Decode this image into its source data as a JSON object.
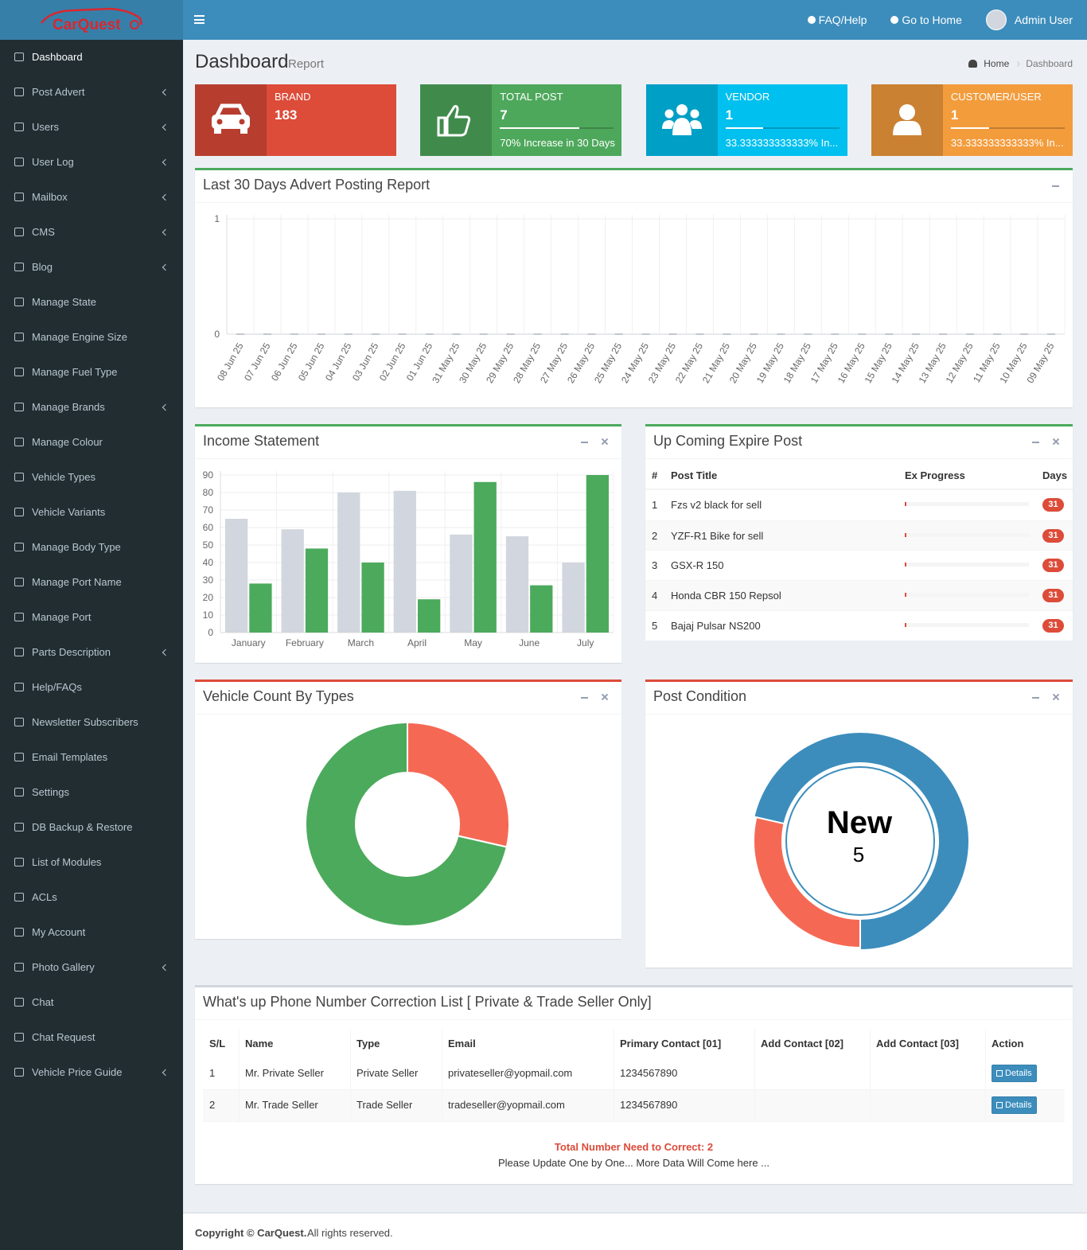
{
  "logo": "CarQuest",
  "topbar": {
    "links": [
      "FAQ/Help",
      "Go to Home"
    ],
    "user": "Admin User"
  },
  "sidebar": [
    {
      "label": "Dashboard",
      "submenu": false
    },
    {
      "label": "Post Advert",
      "submenu": true
    },
    {
      "label": "Users",
      "submenu": true
    },
    {
      "label": "User Log",
      "submenu": true
    },
    {
      "label": "Mailbox",
      "submenu": true
    },
    {
      "label": "CMS",
      "submenu": true
    },
    {
      "label": "Blog",
      "submenu": true
    },
    {
      "label": "Manage State",
      "submenu": false
    },
    {
      "label": "Manage Engine Size",
      "submenu": false
    },
    {
      "label": "Manage Fuel Type",
      "submenu": false
    },
    {
      "label": "Manage Brands",
      "submenu": true
    },
    {
      "label": "Manage Colour",
      "submenu": false
    },
    {
      "label": "Vehicle Types",
      "submenu": false
    },
    {
      "label": "Vehicle Variants",
      "submenu": false
    },
    {
      "label": "Manage Body Type",
      "submenu": false
    },
    {
      "label": "Manage Port Name",
      "submenu": false
    },
    {
      "label": "Manage Port",
      "submenu": false
    },
    {
      "label": "Parts Description",
      "submenu": true
    },
    {
      "label": "Help/FAQs",
      "submenu": false
    },
    {
      "label": "Newsletter Subscribers",
      "submenu": false
    },
    {
      "label": "Email Templates",
      "submenu": false
    },
    {
      "label": "Settings",
      "submenu": false
    },
    {
      "label": "DB Backup & Restore",
      "submenu": false
    },
    {
      "label": "List of Modules",
      "submenu": false
    },
    {
      "label": "ACLs",
      "submenu": false
    },
    {
      "label": "My Account",
      "submenu": false
    },
    {
      "label": "Photo Gallery",
      "submenu": true
    },
    {
      "label": "Chat",
      "submenu": false
    },
    {
      "label": "Chat Request",
      "submenu": false
    },
    {
      "label": "Vehicle Price Guide",
      "submenu": true
    }
  ],
  "header": {
    "title": "Dashboard",
    "subtitle": "Report",
    "breadcrumb": [
      "Home",
      "Dashboard"
    ]
  },
  "info_boxes": [
    {
      "label": "BRAND",
      "value": 183,
      "color": "#dd4b39"
    },
    {
      "label": "TOTAL POST",
      "value": 7,
      "progress": 70,
      "description": "70% Increase in 30 Days",
      "color": "#4ea85c"
    },
    {
      "label": "VENDOR",
      "value": 1,
      "progress": 33.333333333333,
      "description": "33.333333333333% In...",
      "color": "#00c0ef"
    },
    {
      "label": "CUSTOMER/USER",
      "value": 1,
      "progress": 33.333333333333,
      "description": "33.333333333333% In...",
      "color": "#f39c3c"
    }
  ],
  "charts": {
    "posting": {
      "type": "line",
      "title": "Last 30 Days Advert Posting Report",
      "categories": [
        "08 Jun 25",
        "07 Jun 25",
        "06 Jun 25",
        "05 Jun 25",
        "04 Jun 25",
        "03 Jun 25",
        "02 Jun 25",
        "01 Jun 25",
        "31 May 25",
        "30 May 25",
        "29 May 25",
        "28 May 25",
        "27 May 25",
        "26 May 25",
        "25 May 25",
        "24 May 25",
        "23 May 25",
        "22 May 25",
        "21 May 25",
        "20 May 25",
        "19 May 25",
        "18 May 25",
        "17 May 25",
        "16 May 25",
        "15 May 25",
        "14 May 25",
        "13 May 25",
        "12 May 25",
        "11 May 25",
        "10 May 25",
        "09 May 25"
      ],
      "values": [
        0,
        0,
        0,
        0,
        0,
        0,
        0,
        0,
        0,
        0,
        0,
        0,
        0,
        0,
        0,
        0,
        0,
        0,
        0,
        0,
        0,
        0,
        0,
        0,
        0,
        0,
        0,
        0,
        0,
        0,
        0
      ],
      "color": "#c1c7d1",
      "ylim": [
        0,
        1
      ],
      "yticks": [
        0,
        1
      ],
      "grid": true
    },
    "income": {
      "type": "bar",
      "title": "Income Statement",
      "categories": [
        "January",
        "February",
        "March",
        "April",
        "May",
        "June",
        "July"
      ],
      "series": [
        {
          "color": "#d2d6de",
          "values": [
            65,
            59,
            80,
            81,
            56,
            55,
            40
          ]
        },
        {
          "color": "#4caa5c",
          "values": [
            28,
            48,
            40,
            19,
            86,
            27,
            90
          ]
        }
      ],
      "ylim": [
        0,
        90
      ],
      "yticks": [
        0,
        10,
        20,
        30,
        40,
        50,
        60,
        70,
        80,
        90
      ],
      "grid": true
    },
    "vehicle_types": {
      "type": "donut",
      "title": "Vehicle Count By Types",
      "values": [
        2,
        5
      ],
      "colors": [
        "#f56954",
        "#4caa5c"
      ]
    },
    "post_condition": {
      "type": "donut",
      "title": "Post Condition",
      "categories": [
        "New",
        null,
        null
      ],
      "values": [
        5,
        2,
        0
      ],
      "colors": [
        "#3c8dbc",
        "#f56954",
        "#00a65a"
      ]
    }
  },
  "expire": {
    "title": "Up Coming Expire Post",
    "columns": [
      "#",
      "Post Title",
      "Ex Progress",
      "Days"
    ],
    "rows": [
      {
        "n": 1,
        "title": "Fzs v2 black for sell",
        "progress": 1,
        "days": 31
      },
      {
        "n": 2,
        "title": "YZF-R1 Bike for sell",
        "progress": 1,
        "days": 31
      },
      {
        "n": 3,
        "title": "GSX-R 150",
        "progress": 1,
        "days": 31
      },
      {
        "n": 4,
        "title": "Honda CBR 150 Repsol",
        "progress": 1,
        "days": 31
      },
      {
        "n": 5,
        "title": "Bajaj Pulsar NS200",
        "progress": 1,
        "days": 31
      }
    ]
  },
  "phone": {
    "title": "What's up Phone Number Correction List [ Private & Trade Seller Only]",
    "columns": [
      "S/L",
      "Name",
      "Type",
      "Email",
      "Primary Contact [01]",
      "Add Contact [02]",
      "Add Contact [03]",
      "Action"
    ],
    "rows": [
      [
        1,
        "Mr. Private Seller",
        "Private Seller",
        "privateseller@yopmail.com",
        "1234567890",
        null,
        null,
        "Details"
      ],
      [
        2,
        "Mr. Trade Seller",
        "Trade Seller",
        "tradeseller@yopmail.com",
        "1234567890",
        null,
        null,
        "Details"
      ]
    ],
    "total_label": "Total Number Need to Correct:",
    "total": 2,
    "note": "Please Update One by One... More Data Will Come here ..."
  },
  "footer": {
    "copyright": "Copyright © CarQuest.",
    "rights": "All rights reserved."
  }
}
